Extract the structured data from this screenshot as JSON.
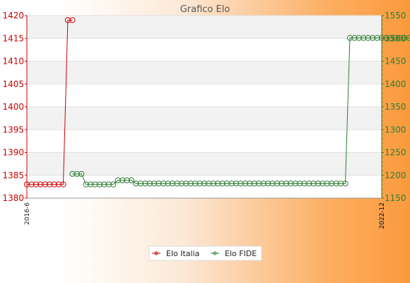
{
  "chart_data": {
    "type": "line",
    "title": "Grafico Elo",
    "left_axis": {
      "ylim": [
        1380,
        1420
      ],
      "ticks": [
        1380,
        1385,
        1390,
        1395,
        1400,
        1405,
        1410,
        1415,
        1420
      ],
      "color": "#cc0000"
    },
    "right_axis": {
      "ylim": [
        1150,
        1550
      ],
      "ticks": [
        1150,
        1200,
        1250,
        1300,
        1350,
        1400,
        1450,
        1500,
        1550
      ],
      "color": "#2e7d32"
    },
    "x_first_label": "2016-6",
    "x_last_label": "2022-12",
    "x_count": 79,
    "series": [
      {
        "name": "Elo Italia",
        "axis": "left",
        "color": "#cc0000",
        "values": [
          1383,
          1383,
          1383,
          1383,
          1383,
          1383,
          1383,
          1383,
          1383,
          1419,
          1419
        ]
      },
      {
        "name": "Elo FIDE",
        "axis": "right",
        "color": "#2e7d32",
        "start_index": 10,
        "values": [
          1203,
          1203,
          1203,
          1180,
          1180,
          1180,
          1180,
          1180,
          1180,
          1180,
          1189,
          1189,
          1189,
          1189,
          1182,
          1182,
          1182,
          1182,
          1182,
          1182,
          1182,
          1182,
          1182,
          1182,
          1182,
          1182,
          1182,
          1182,
          1182,
          1182,
          1182,
          1182,
          1182,
          1182,
          1182,
          1182,
          1182,
          1182,
          1182,
          1182,
          1182,
          1182,
          1182,
          1182,
          1182,
          1182,
          1182,
          1182,
          1182,
          1182,
          1182,
          1182,
          1182,
          1182,
          1182,
          1182,
          1182,
          1182,
          1182,
          1182,
          1182,
          1501,
          1501,
          1501,
          1501,
          1501,
          1501,
          1501,
          1501,
          1501,
          1501,
          1501,
          1501,
          1501,
          1501,
          1501,
          1501,
          1501,
          1501
        ]
      }
    ],
    "grid": true,
    "legend_position": "bottom"
  }
}
